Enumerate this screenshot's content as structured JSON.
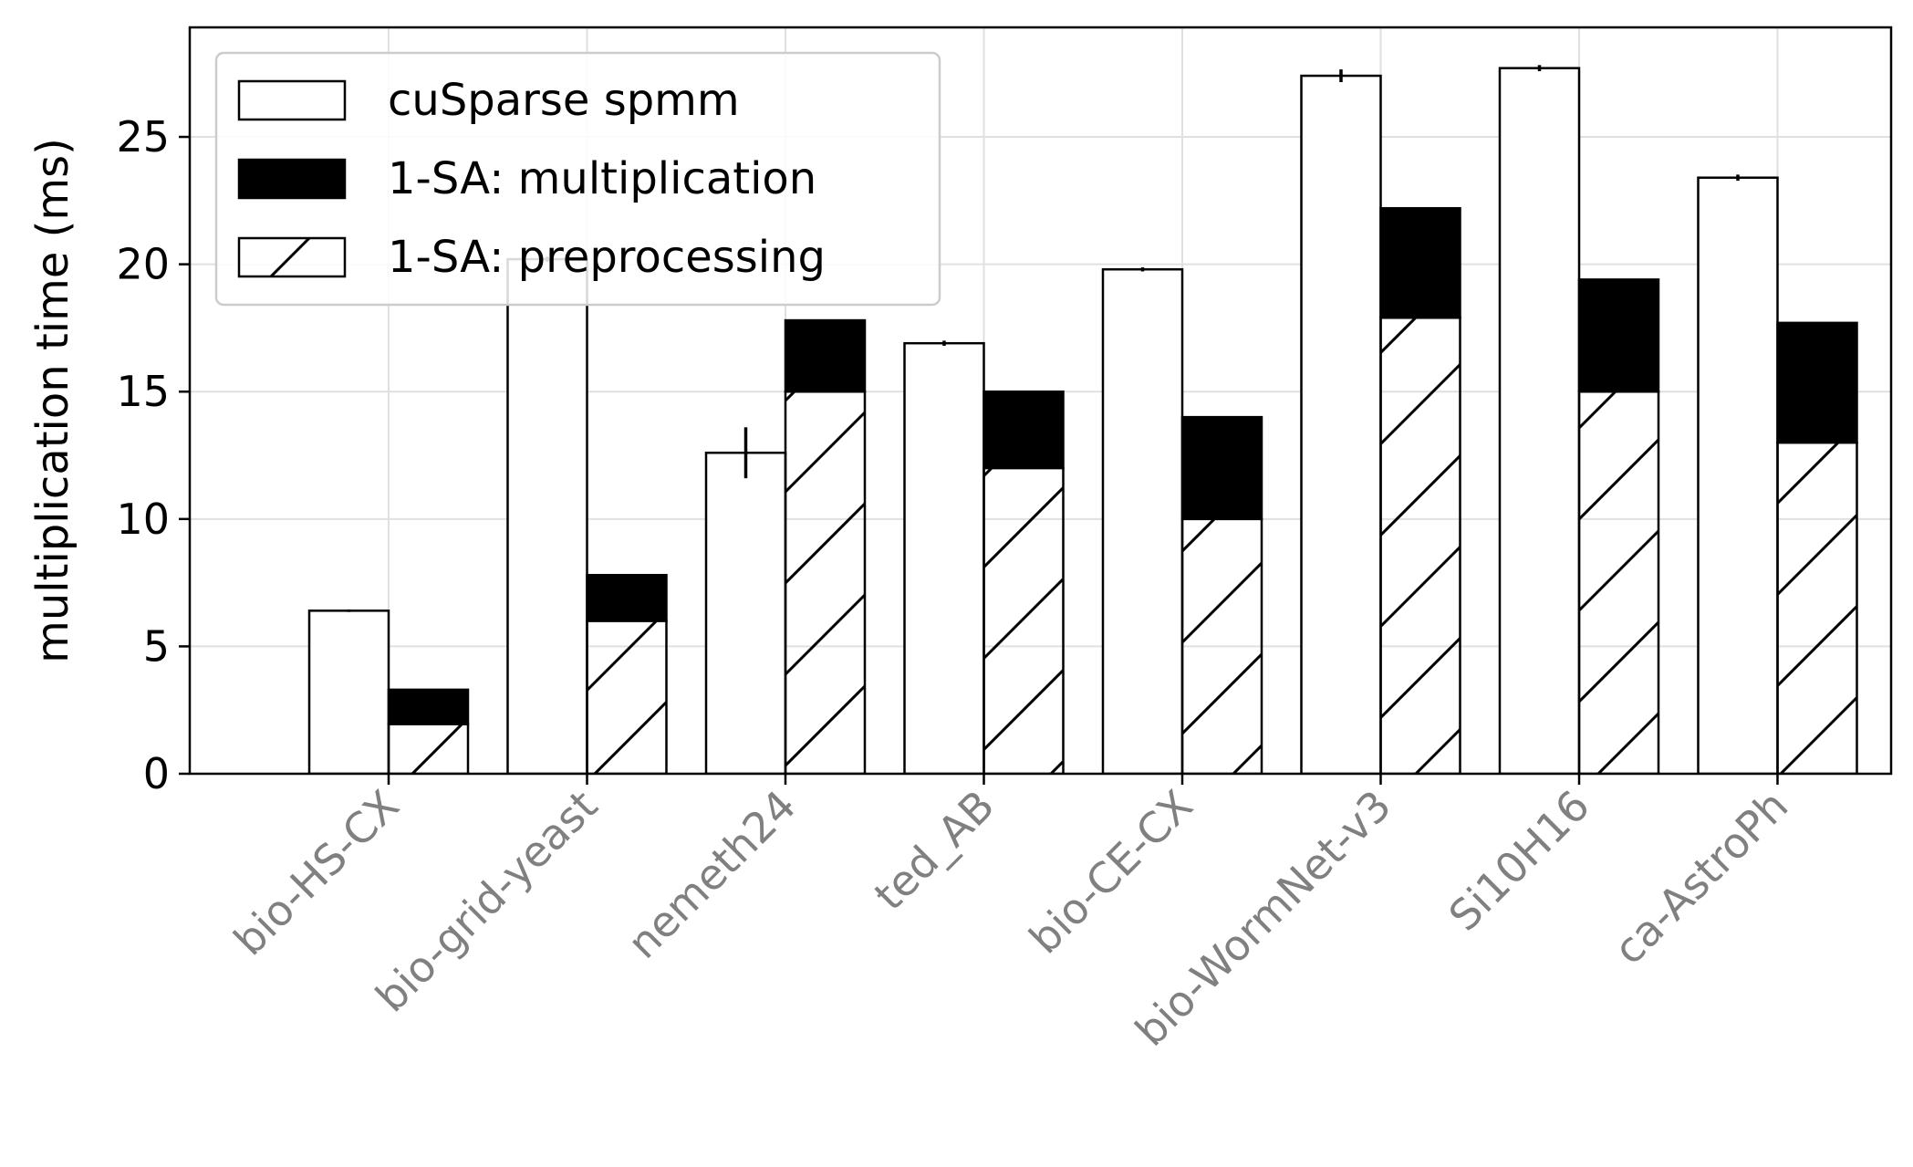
{
  "chart_data": {
    "type": "bar",
    "title": "",
    "xlabel": "",
    "ylabel": "multiplication time (ms)",
    "ylim": [
      0,
      29.3
    ],
    "yticks": [
      0,
      5,
      10,
      15,
      20,
      25
    ],
    "grid": true,
    "legend_position": "top-left",
    "categories": [
      "bio-HS-CX",
      "bio-grid-yeast",
      "nemeth24",
      "ted_AB",
      "bio-CE-CX",
      "bio-WormNet-v3",
      "Si10H16",
      "ca-AstroPh"
    ],
    "series": [
      {
        "name": "cuSparse spmm",
        "style": "white",
        "values": [
          6.4,
          20.2,
          12.6,
          16.9,
          19.8,
          27.4,
          27.7,
          23.4
        ],
        "errors": [
          0.05,
          0.1,
          1.0,
          0.1,
          0.08,
          0.25,
          0.12,
          0.12
        ]
      },
      {
        "name": "1-SA: multiplication",
        "style": "black",
        "stack": "1-SA",
        "values": [
          1.35,
          1.8,
          2.8,
          3.0,
          4.0,
          4.3,
          4.4,
          4.7
        ]
      },
      {
        "name": "1-SA: preprocessing",
        "style": "hatched",
        "stack": "1-SA",
        "values": [
          1.95,
          6.0,
          15.0,
          12.0,
          10.0,
          17.9,
          15.0,
          13.0
        ]
      }
    ],
    "colors": {
      "edge": "#000000",
      "fill_white": "#ffffff",
      "fill_black": "#000000",
      "grid": "#e0e0e0",
      "category_label": "#808080"
    }
  }
}
